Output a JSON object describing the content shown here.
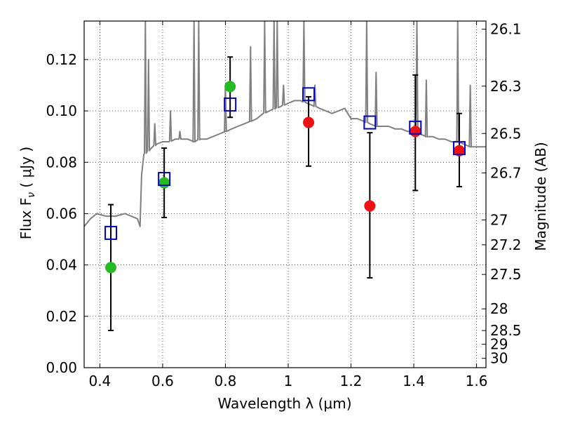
{
  "chart_data": {
    "type": "scatter",
    "xlabel": "Wavelength  λ (μm)",
    "ylabel": "Flux  F",
    "ylabel_sub": "ν",
    "ylabel_units": "  ( μJy )",
    "y2label": "Magnitude (AB)",
    "xlim": [
      0.35,
      1.63
    ],
    "ylim": [
      0.0,
      0.135
    ],
    "grid": true,
    "grid_style": "dotted",
    "x_ticks": [
      0.4,
      0.6,
      0.8,
      1.0,
      1.2,
      1.4,
      1.6
    ],
    "x_tick_labels": [
      "0.4",
      "0.6",
      "0.8",
      "1",
      "1.2",
      "1.4",
      "1.6"
    ],
    "y_ticks": [
      0.0,
      0.02,
      0.04,
      0.06,
      0.08,
      0.1,
      0.12
    ],
    "y_tick_labels": [
      "0.00",
      "0.02",
      "0.04",
      "0.06",
      "0.08",
      "0.10",
      "0.12"
    ],
    "y2_ticks": [
      {
        "mag": 26.1,
        "label": "26.1"
      },
      {
        "mag": 26.3,
        "label": "26.3"
      },
      {
        "mag": 26.5,
        "label": "26.5"
      },
      {
        "mag": 26.7,
        "label": "26.7"
      },
      {
        "mag": 27.0,
        "label": "27"
      },
      {
        "mag": 27.2,
        "label": "27.2"
      },
      {
        "mag": 27.5,
        "label": "27.5"
      },
      {
        "mag": 28.0,
        "label": "28"
      },
      {
        "mag": 28.5,
        "label": "28.5"
      },
      {
        "mag": 29.0,
        "label": "29"
      },
      {
        "mag": 30.0,
        "label": "30"
      }
    ],
    "colors": {
      "sed": "#808080",
      "green_points": "#22bb22",
      "red_points": "#ee1111",
      "model_squares": "#0000cc",
      "errorbars": "#000000"
    },
    "sed_template": {
      "name": "SED model",
      "continuum": [
        [
          0.35,
          0.055
        ],
        [
          0.37,
          0.058
        ],
        [
          0.39,
          0.06
        ],
        [
          0.42,
          0.059
        ],
        [
          0.45,
          0.059
        ],
        [
          0.48,
          0.06
        ],
        [
          0.5,
          0.059
        ],
        [
          0.52,
          0.058
        ],
        [
          0.528,
          0.055
        ],
        [
          0.533,
          0.075
        ],
        [
          0.54,
          0.083
        ],
        [
          0.56,
          0.085
        ],
        [
          0.58,
          0.087
        ],
        [
          0.6,
          0.088
        ],
        [
          0.62,
          0.088
        ],
        [
          0.64,
          0.089
        ],
        [
          0.66,
          0.089
        ],
        [
          0.68,
          0.089
        ],
        [
          0.7,
          0.088
        ],
        [
          0.72,
          0.089
        ],
        [
          0.74,
          0.089
        ],
        [
          0.76,
          0.09
        ],
        [
          0.78,
          0.091
        ],
        [
          0.8,
          0.092
        ],
        [
          0.82,
          0.093
        ],
        [
          0.84,
          0.094
        ],
        [
          0.86,
          0.095
        ],
        [
          0.88,
          0.096
        ],
        [
          0.9,
          0.097
        ],
        [
          0.92,
          0.099
        ],
        [
          0.94,
          0.1
        ],
        [
          0.96,
          0.101
        ],
        [
          0.98,
          0.102
        ],
        [
          1.0,
          0.103
        ],
        [
          1.02,
          0.104
        ],
        [
          1.04,
          0.104
        ],
        [
          1.06,
          0.103
        ],
        [
          1.08,
          0.102
        ],
        [
          1.1,
          0.101
        ],
        [
          1.12,
          0.1
        ],
        [
          1.14,
          0.099
        ],
        [
          1.16,
          0.1
        ],
        [
          1.18,
          0.101
        ],
        [
          1.19,
          0.099
        ],
        [
          1.2,
          0.097
        ],
        [
          1.22,
          0.097
        ],
        [
          1.24,
          0.096
        ],
        [
          1.26,
          0.095
        ],
        [
          1.28,
          0.094
        ],
        [
          1.3,
          0.094
        ],
        [
          1.32,
          0.094
        ],
        [
          1.34,
          0.093
        ],
        [
          1.36,
          0.093
        ],
        [
          1.38,
          0.092
        ],
        [
          1.4,
          0.092
        ],
        [
          1.42,
          0.091
        ],
        [
          1.44,
          0.09
        ],
        [
          1.46,
          0.09
        ],
        [
          1.48,
          0.089
        ],
        [
          1.5,
          0.089
        ],
        [
          1.52,
          0.088
        ],
        [
          1.54,
          0.088
        ],
        [
          1.56,
          0.087
        ],
        [
          1.58,
          0.086
        ],
        [
          1.6,
          0.086
        ],
        [
          1.63,
          0.086
        ]
      ],
      "emission_lines": [
        [
          0.545,
          0.135
        ],
        [
          0.555,
          0.12
        ],
        [
          0.575,
          0.095
        ],
        [
          0.625,
          0.1
        ],
        [
          0.655,
          0.092
        ],
        [
          0.7,
          0.135
        ],
        [
          0.715,
          0.135
        ],
        [
          0.8,
          0.11
        ],
        [
          0.88,
          0.125
        ],
        [
          0.925,
          0.135
        ],
        [
          0.955,
          0.135
        ],
        [
          0.965,
          0.135
        ],
        [
          0.985,
          0.11
        ],
        [
          1.05,
          0.135
        ],
        [
          1.085,
          0.11
        ],
        [
          1.25,
          0.135
        ],
        [
          1.28,
          0.115
        ],
        [
          1.41,
          0.135
        ],
        [
          1.44,
          0.112
        ],
        [
          1.54,
          0.135
        ],
        [
          1.58,
          0.11
        ]
      ]
    },
    "series": [
      {
        "marker": "circle",
        "color": "green",
        "points": [
          {
            "x": 0.435,
            "y": 0.039,
            "yerr": [
              0.0145,
              0.0635
            ]
          },
          {
            "x": 0.605,
            "y": 0.072,
            "yerr": [
              0.0585,
              0.0855
            ]
          },
          {
            "x": 0.815,
            "y": 0.1095,
            "yerr": [
              0.0975,
              0.121
            ]
          }
        ]
      },
      {
        "marker": "circle",
        "color": "red",
        "points": [
          {
            "x": 1.065,
            "y": 0.0955,
            "yerr": [
              0.0785,
              0.1055
            ]
          },
          {
            "x": 1.26,
            "y": 0.063,
            "yerr": [
              0.035,
              0.0915
            ]
          },
          {
            "x": 1.405,
            "y": 0.092,
            "yerr": [
              0.069,
              0.114
            ]
          },
          {
            "x": 1.545,
            "y": 0.0845,
            "yerr": [
              0.0705,
              0.099
            ]
          }
        ]
      },
      {
        "marker": "square-open",
        "color": "blue",
        "points": [
          {
            "x": 0.435,
            "y": 0.0525
          },
          {
            "x": 0.605,
            "y": 0.0735
          },
          {
            "x": 0.815,
            "y": 0.1025
          },
          {
            "x": 1.065,
            "y": 0.1065
          },
          {
            "x": 1.26,
            "y": 0.0955
          },
          {
            "x": 1.405,
            "y": 0.0935
          },
          {
            "x": 1.545,
            "y": 0.0855
          }
        ]
      }
    ]
  }
}
